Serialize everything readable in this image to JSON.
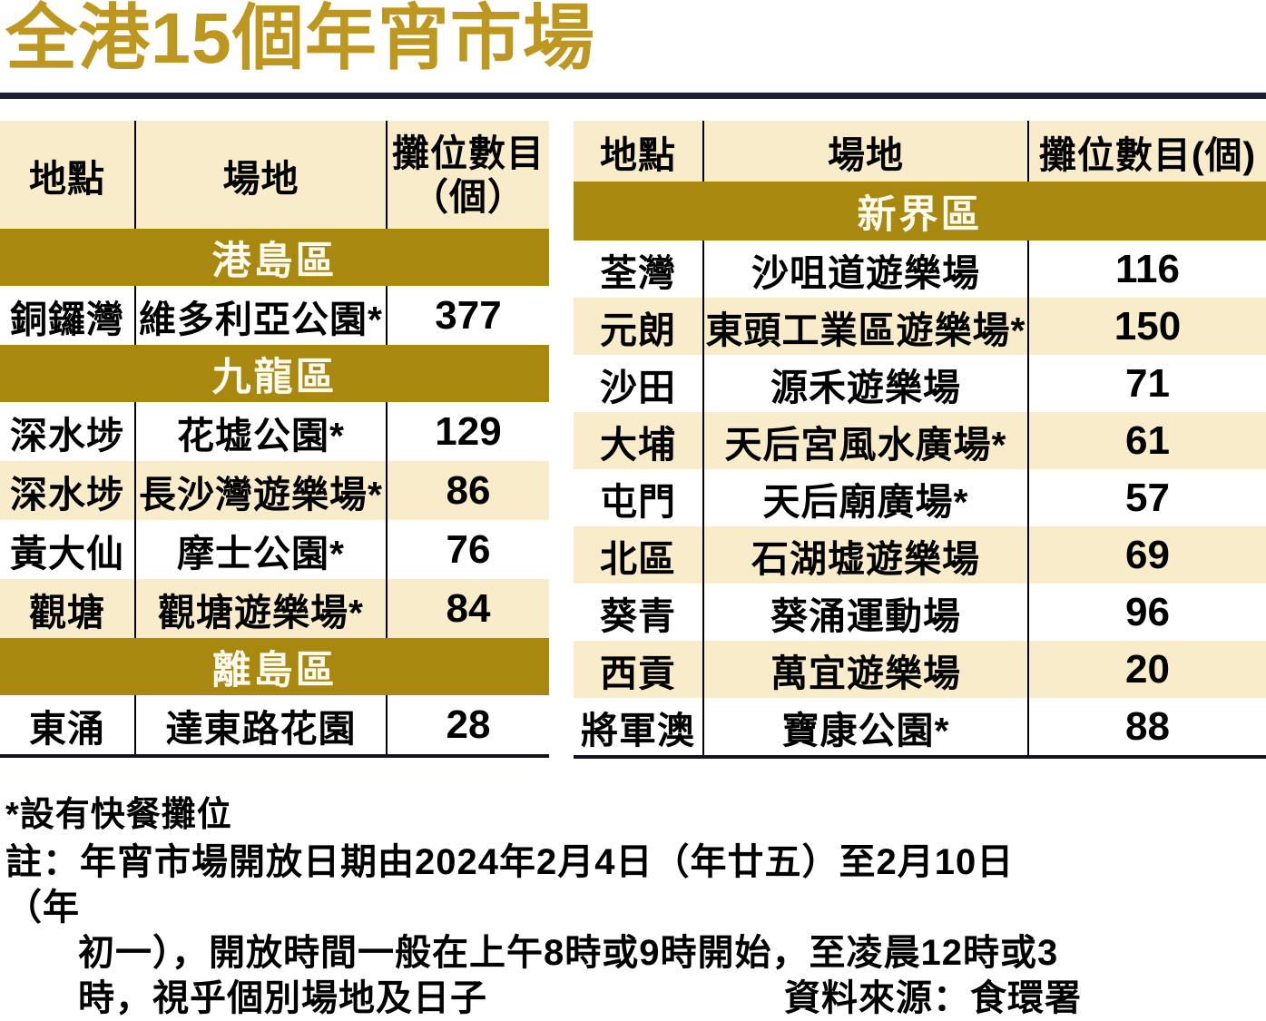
{
  "title": "全港15個年宵市場",
  "colors": {
    "title_gold": "#bd9720",
    "section_gold": "#a8880e",
    "row_cream": "#f9ecca",
    "rule_navy": "#1b1b33"
  },
  "tables": {
    "left": {
      "header": {
        "location": "地點",
        "venue": "場地",
        "stalls_line1": "攤位數目",
        "stalls_line2": "（個）"
      },
      "sections": [
        {
          "name": "港島區",
          "rows": [
            {
              "location": "銅鑼灣",
              "venue": "維多利亞公園*",
              "stalls": "377"
            }
          ]
        },
        {
          "name": "九龍區",
          "rows": [
            {
              "location": "深水埗",
              "venue": "花墟公園*",
              "stalls": "129"
            },
            {
              "location": "深水埗",
              "venue": "長沙灣遊樂場*",
              "stalls": "86"
            },
            {
              "location": "黃大仙",
              "venue": "摩士公園*",
              "stalls": "76"
            },
            {
              "location": "觀塘",
              "venue": "觀塘遊樂場*",
              "stalls": "84"
            }
          ]
        },
        {
          "name": "離島區",
          "rows": [
            {
              "location": "東涌",
              "venue": "達東路花園",
              "stalls": "28"
            }
          ]
        }
      ]
    },
    "right": {
      "header": {
        "location": "地點",
        "venue": "場地",
        "stalls": "攤位數目(個)"
      },
      "sections": [
        {
          "name": "新界區",
          "rows": [
            {
              "location": "荃灣",
              "venue": "沙咀道遊樂場",
              "stalls": "116"
            },
            {
              "location": "元朗",
              "venue": "東頭工業區遊樂場*",
              "stalls": "150"
            },
            {
              "location": "沙田",
              "venue": "源禾遊樂場",
              "stalls": "71"
            },
            {
              "location": "大埔",
              "venue": "天后宮風水廣場*",
              "stalls": "61"
            },
            {
              "location": "屯門",
              "venue": "天后廟廣場*",
              "stalls": "57"
            },
            {
              "location": "北區",
              "venue": "石湖墟遊樂場",
              "stalls": "69"
            },
            {
              "location": "葵青",
              "venue": "葵涌運動場",
              "stalls": "96"
            },
            {
              "location": "西貢",
              "venue": "萬宜遊樂場",
              "stalls": "20"
            },
            {
              "location": "將軍澳",
              "venue": "寶康公園*",
              "stalls": "88"
            }
          ]
        }
      ]
    }
  },
  "footnote": "*設有快餐攤位",
  "note": {
    "line1": "註：年宵市場開放日期由2024年2月4日（年廿五）至2月10日（年",
    "line2": "初一），開放時間一般在上午8時或9時開始，至凌晨12時或3",
    "line3": "時，視乎個別場地及日子",
    "source": "資料來源：食環署"
  }
}
